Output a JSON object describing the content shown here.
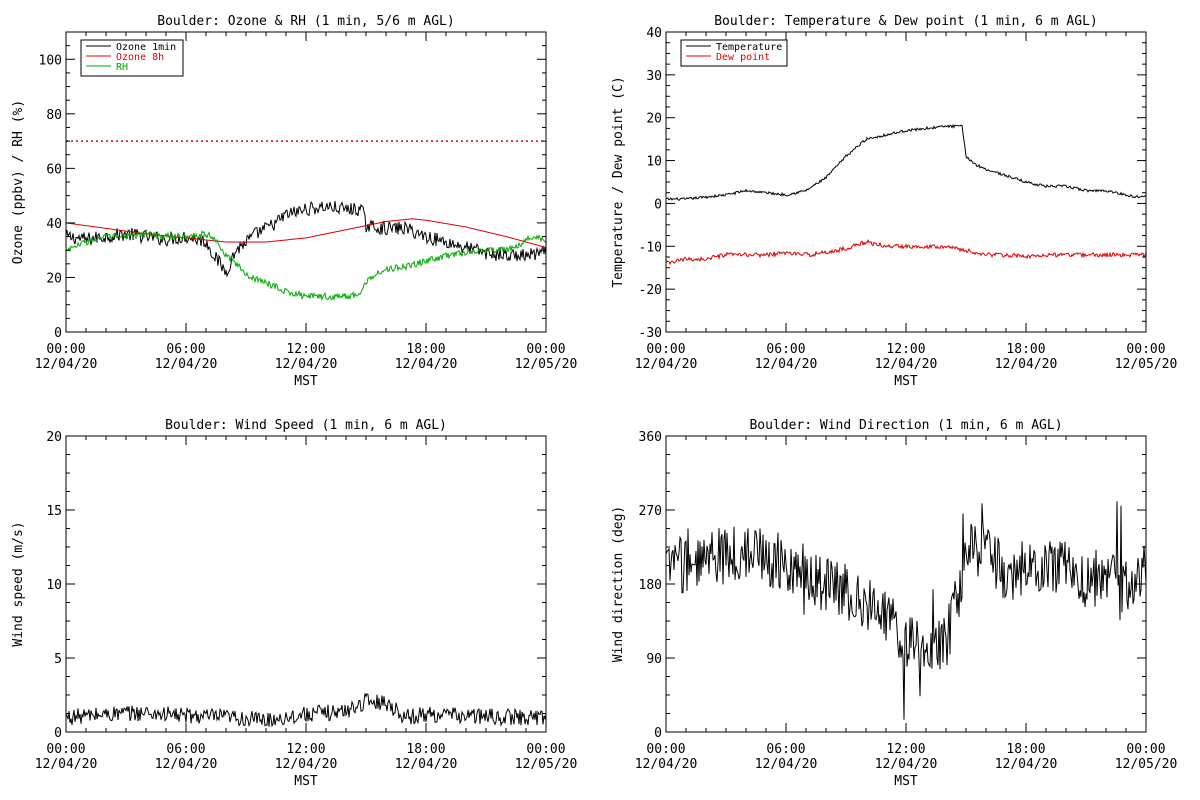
{
  "page": {
    "x_axis": {
      "ticks": [
        {
          "t": "00:00",
          "d": "12/04/20"
        },
        {
          "t": "06:00",
          "d": "12/04/20"
        },
        {
          "t": "12:00",
          "d": "12/04/20"
        },
        {
          "t": "18:00",
          "d": "12/04/20"
        },
        {
          "t": "00:00",
          "d": "12/05/20"
        }
      ],
      "label": "MST"
    }
  },
  "chart_data": [
    {
      "type": "line",
      "title": "Boulder: Ozone & RH (1 min, 5/6 m AGL)",
      "xlabel": "MST",
      "ylabel": "Ozone (ppbv) / RH (%)",
      "xlim": [
        0,
        24
      ],
      "ylim": [
        0,
        110
      ],
      "yticks": [
        0,
        20,
        40,
        60,
        80,
        100
      ],
      "reference_line": {
        "y": 70,
        "color": "#dd0000",
        "style": "dotted"
      },
      "legend_position": "top-left",
      "series": [
        {
          "name": "Ozone 1min",
          "color": "#000000",
          "noise": 2.5,
          "x": [
            0,
            1,
            2,
            3,
            4,
            5,
            6,
            7,
            7.5,
            8,
            8.5,
            9,
            9.5,
            10,
            10.5,
            11,
            12,
            13,
            14,
            14.8,
            15,
            16,
            17,
            18,
            19,
            20,
            21,
            22,
            23,
            24
          ],
          "y": [
            35,
            34,
            35,
            36,
            35,
            34,
            35,
            33,
            27,
            22,
            30,
            33,
            36,
            38,
            40,
            43,
            45,
            46,
            45,
            45,
            39,
            38,
            38,
            35,
            33,
            31,
            29,
            28,
            28,
            29
          ]
        },
        {
          "name": "Ozone 8h",
          "color": "#dd0000",
          "noise": 0,
          "x": [
            0,
            2,
            4,
            6,
            8,
            10,
            12,
            14,
            16,
            17.3,
            18,
            20,
            22,
            24
          ],
          "y": [
            40,
            38,
            36,
            34.5,
            33,
            33,
            34.5,
            37.5,
            40.5,
            41.5,
            41,
            38.5,
            35,
            31
          ]
        },
        {
          "name": "RH",
          "color": "#00aa00",
          "noise": 1.2,
          "x": [
            0,
            1,
            2,
            3,
            4,
            5,
            6,
            7,
            7.5,
            8,
            8.5,
            9,
            10,
            11,
            12,
            13,
            14,
            14.7,
            15,
            15.5,
            16,
            17,
            18,
            19,
            20,
            21,
            22,
            22.5,
            23,
            23.5,
            24
          ],
          "y": [
            30,
            33,
            35,
            35,
            36,
            35,
            35,
            36,
            34,
            28,
            25,
            21,
            18,
            15,
            13,
            13,
            13,
            14,
            18,
            22,
            23,
            24,
            26,
            28,
            29,
            30,
            30,
            31,
            34,
            35,
            33
          ]
        }
      ]
    },
    {
      "type": "line",
      "title": "Boulder: Temperature & Dew point (1 min, 6 m AGL)",
      "xlabel": "MST",
      "ylabel": "Temperature / Dew point (C)",
      "xlim": [
        0,
        24
      ],
      "ylim": [
        -30,
        40
      ],
      "yticks": [
        -30,
        -20,
        -10,
        0,
        10,
        20,
        30,
        40
      ],
      "legend_position": "top-left",
      "series": [
        {
          "name": "Temperature",
          "color": "#000000",
          "noise": 0.3,
          "x": [
            0,
            1,
            2,
            3,
            4,
            5,
            6,
            7,
            8,
            9,
            10,
            11,
            12,
            13,
            14,
            14.8,
            15,
            15.5,
            16,
            17,
            18,
            19,
            20,
            21,
            22,
            23,
            23.5,
            24
          ],
          "y": [
            1,
            1,
            1.5,
            2,
            3,
            2.5,
            2,
            3,
            6,
            11,
            15,
            16,
            17,
            17.5,
            18,
            18,
            11,
            9,
            8,
            6.5,
            5,
            4,
            4,
            3,
            3,
            2,
            1.5,
            2
          ]
        },
        {
          "name": "Dew point",
          "color": "#dd0000",
          "noise": 0.5,
          "x": [
            0,
            1,
            2,
            3,
            4,
            5,
            6,
            7,
            8,
            9,
            10,
            11,
            12,
            13,
            14,
            15,
            16,
            17,
            18,
            19,
            20,
            21,
            22,
            23,
            24
          ],
          "y": [
            -14,
            -13,
            -13,
            -12,
            -12,
            -12,
            -11.5,
            -12,
            -11.5,
            -10.5,
            -9,
            -10,
            -10,
            -10,
            -10,
            -11,
            -12,
            -12,
            -12.5,
            -12,
            -12,
            -12,
            -12,
            -12,
            -12
          ]
        }
      ]
    },
    {
      "type": "line",
      "title": "Boulder: Wind Speed (1 min, 6 m AGL)",
      "xlabel": "MST",
      "ylabel": "Wind speed (m/s)",
      "xlim": [
        0,
        24
      ],
      "ylim": [
        0,
        20
      ],
      "yticks": [
        0,
        5,
        10,
        15,
        20
      ],
      "series": [
        {
          "name": "",
          "color": "#000000",
          "noise": 0.55,
          "x": [
            0,
            2,
            4,
            6,
            8,
            10,
            12,
            13,
            14,
            15,
            16,
            17,
            18,
            20,
            22,
            24
          ],
          "y": [
            1.0,
            1.2,
            1.3,
            1.1,
            1.0,
            0.8,
            1.2,
            1.3,
            1.4,
            2.1,
            2.0,
            1.0,
            1.2,
            1.1,
            1.0,
            1.0
          ]
        }
      ]
    },
    {
      "type": "line",
      "title": "Boulder: Wind Direction (1 min, 6 m AGL)",
      "xlabel": "MST",
      "ylabel": "Wind direction (deg)",
      "xlim": [
        0,
        24
      ],
      "ylim": [
        0,
        360
      ],
      "yticks": [
        0,
        90,
        180,
        270,
        360
      ],
      "series": [
        {
          "name": "",
          "color": "#000000",
          "noise": 35,
          "spikes": true,
          "x": [
            0,
            2,
            4,
            6,
            8,
            10,
            11,
            12,
            13,
            14,
            15,
            15.2,
            16,
            17,
            18,
            19,
            20,
            21,
            22,
            23,
            24
          ],
          "y": [
            200,
            210,
            220,
            205,
            180,
            160,
            140,
            110,
            95,
            110,
            200,
            225,
            222,
            190,
            200,
            205,
            200,
            185,
            190,
            175,
            190
          ]
        }
      ]
    }
  ]
}
